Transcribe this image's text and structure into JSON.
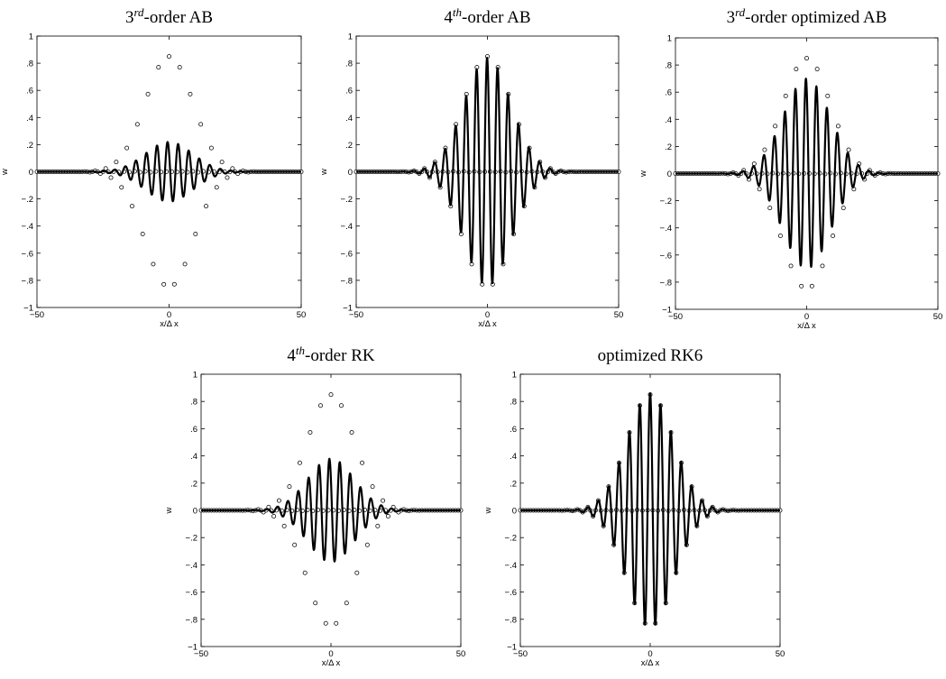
{
  "chart_data": [
    {
      "type": "line",
      "title_base": "3",
      "title_sup": "rd",
      "title_rest": "-order AB",
      "xlabel": "x/Δ x",
      "ylabel": "w",
      "xlim": [
        -50,
        50
      ],
      "ylim": [
        -1,
        1
      ],
      "xticks": [
        -50,
        0,
        50
      ],
      "yticks": [
        -1,
        -0.8,
        -0.6,
        -0.4,
        -0.2,
        0,
        0.2,
        0.4,
        0.6,
        0.8,
        1
      ],
      "series": [
        {
          "style": "exact-markers",
          "amp": 0.85,
          "k": 1.57,
          "sigma": 9,
          "phase": 0
        },
        {
          "style": "numerical-line",
          "amp": 0.22,
          "k": 1.57,
          "sigma": 9,
          "phase": 0.9
        }
      ]
    },
    {
      "type": "line",
      "title_base": "4",
      "title_sup": "th",
      "title_rest": "-order AB",
      "xlabel": "x/Δ x",
      "ylabel": "w",
      "xlim": [
        -50,
        50
      ],
      "ylim": [
        -1,
        1
      ],
      "xticks": [
        -50,
        0,
        50
      ],
      "yticks": [
        -1,
        -0.8,
        -0.6,
        -0.4,
        -0.2,
        0,
        0.2,
        0.4,
        0.6,
        0.8,
        1
      ],
      "series": [
        {
          "style": "exact-markers",
          "amp": 0.85,
          "k": 1.57,
          "sigma": 9,
          "phase": 0
        },
        {
          "style": "numerical-line",
          "amp": 0.84,
          "k": 1.57,
          "sigma": 9,
          "phase": 0.2
        }
      ]
    },
    {
      "type": "line",
      "title_base": "3",
      "title_sup": "rd",
      "title_rest": "-order optimized AB",
      "xlabel": "x/Δ x",
      "ylabel": "w",
      "xlim": [
        -50,
        50
      ],
      "ylim": [
        -1,
        1
      ],
      "xticks": [
        -50,
        0,
        50
      ],
      "yticks": [
        -1,
        -0.8,
        -0.6,
        -0.4,
        -0.2,
        0,
        0.2,
        0.4,
        0.6,
        0.8,
        1
      ],
      "series": [
        {
          "style": "exact-markers",
          "amp": 0.85,
          "k": 1.57,
          "sigma": 9,
          "phase": 0
        },
        {
          "style": "numerical-line",
          "amp": 0.7,
          "k": 1.57,
          "sigma": 9,
          "phase": 0.45
        }
      ]
    },
    {
      "type": "line",
      "title_base": "4",
      "title_sup": "th",
      "title_rest": "-order RK",
      "xlabel": "x/Δ x",
      "ylabel": "w",
      "xlim": [
        -50,
        50
      ],
      "ylim": [
        -1,
        1
      ],
      "xticks": [
        -50,
        0,
        50
      ],
      "yticks": [
        -1,
        -0.8,
        -0.6,
        -0.4,
        -0.2,
        0,
        0.2,
        0.4,
        0.6,
        0.8,
        1
      ],
      "series": [
        {
          "style": "exact-markers",
          "amp": 0.85,
          "k": 1.57,
          "sigma": 9,
          "phase": 0
        },
        {
          "style": "numerical-line",
          "amp": 0.38,
          "k": 1.57,
          "sigma": 9,
          "phase": 0.95
        }
      ]
    },
    {
      "type": "line",
      "title_base": "",
      "title_sup": "",
      "title_rest": "optimized RK6",
      "xlabel": "x/Δ x",
      "ylabel": "w",
      "xlim": [
        -50,
        50
      ],
      "ylim": [
        -1,
        1
      ],
      "xticks": [
        -50,
        0,
        50
      ],
      "yticks": [
        -1,
        -0.8,
        -0.6,
        -0.4,
        -0.2,
        0,
        0.2,
        0.4,
        0.6,
        0.8,
        1
      ],
      "series": [
        {
          "style": "exact-markers",
          "amp": 0.85,
          "k": 1.57,
          "sigma": 9,
          "phase": 0
        },
        {
          "style": "numerical-line",
          "amp": 0.86,
          "k": 1.57,
          "sigma": 9,
          "phase": 0.05
        }
      ]
    }
  ]
}
